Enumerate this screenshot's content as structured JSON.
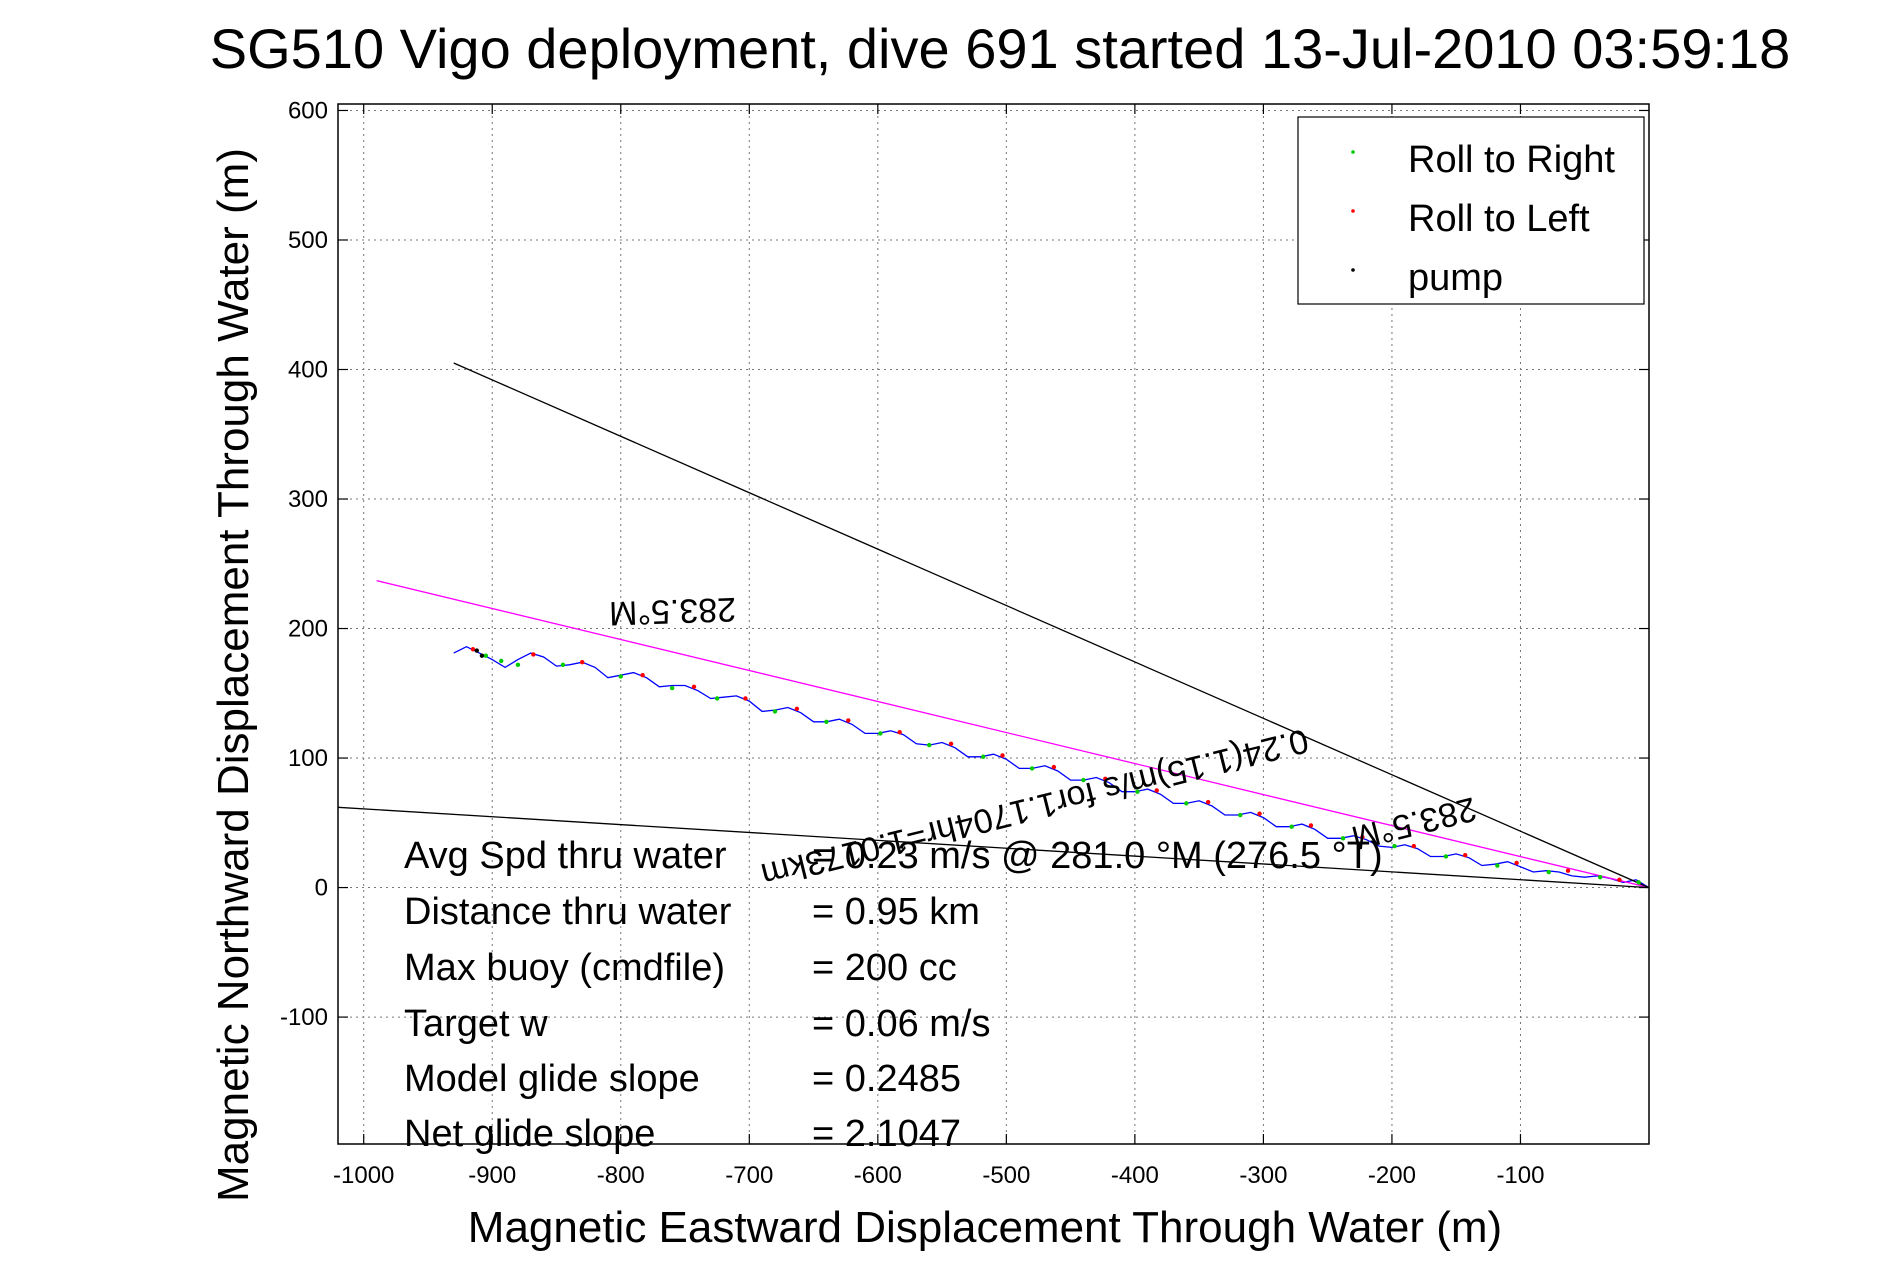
{
  "chart_data": {
    "type": "line",
    "title": "SG510 Vigo deployment, dive 691 started 13-Jul-2010 03:59:18",
    "xlabel": "Magnetic Eastward Displacement Through Water (m)",
    "ylabel": "Magnetic Northward Displacement Through Water (m)",
    "xlim": [
      -1020,
      0
    ],
    "ylim": [
      -198,
      605
    ],
    "xticks": [
      -1000,
      -900,
      -800,
      -700,
      -600,
      -500,
      -400,
      -300,
      -200,
      -100
    ],
    "yticks": [
      -100,
      0,
      100,
      200,
      300,
      400,
      500,
      600
    ],
    "grid": true,
    "legend_position": "top-right",
    "legend": [
      {
        "label": "Roll to Right",
        "color": "#00cc00"
      },
      {
        "label": "Roll to Left",
        "color": "#ff0000"
      },
      {
        "label": "pump",
        "color": "#000000"
      }
    ],
    "series": [
      {
        "color": "#0000ff",
        "x": [
          -930,
          -920,
          -910,
          -900,
          -890,
          -880,
          -870,
          -860,
          -850,
          -840,
          -830,
          -820,
          -810,
          -800,
          -790,
          -780,
          -770,
          -760,
          -750,
          -740,
          -730,
          -720,
          -710,
          -700,
          -690,
          -680,
          -670,
          -660,
          -650,
          -640,
          -630,
          -620,
          -610,
          -600,
          -590,
          -580,
          -570,
          -560,
          -550,
          -540,
          -530,
          -520,
          -510,
          -500,
          -490,
          -480,
          -470,
          -460,
          -450,
          -440,
          -430,
          -420,
          -410,
          -400,
          -390,
          -380,
          -370,
          -360,
          -350,
          -340,
          -330,
          -320,
          -310,
          -300,
          -290,
          -280,
          -270,
          -260,
          -250,
          -240,
          -230,
          -220,
          -210,
          -200,
          -190,
          -180,
          -170,
          -160,
          -150,
          -140,
          -130,
          -120,
          -110,
          -100,
          -90,
          -80,
          -70,
          -60,
          -50,
          -40,
          -30,
          -20,
          -10,
          0
        ],
        "y": [
          181,
          186,
          181,
          176,
          170,
          176,
          181,
          178,
          171,
          172,
          174,
          170,
          162,
          164,
          166,
          162,
          155,
          156,
          156,
          152,
          146,
          147,
          148,
          144,
          136,
          137,
          139,
          135,
          128,
          128,
          130,
          126,
          119,
          119,
          121,
          118,
          111,
          110,
          112,
          108,
          101,
          101,
          103,
          99,
          92,
          92,
          94,
          90,
          83,
          83,
          85,
          81,
          74,
          74,
          76,
          72,
          65,
          65,
          67,
          63,
          56,
          56,
          58,
          54,
          47,
          47,
          49,
          45,
          38,
          38,
          40,
          37,
          32,
          31,
          33,
          30,
          24,
          24,
          26,
          23,
          17,
          18,
          20,
          16,
          12,
          13,
          12,
          9,
          8,
          9,
          7,
          4,
          6,
          0
        ]
      },
      {
        "color": "#ff00ff",
        "x": [
          -990,
          0
        ],
        "y": [
          237,
          0
        ]
      },
      {
        "color": "#000000",
        "x": [
          -930,
          0
        ],
        "y": [
          405,
          0
        ]
      },
      {
        "color": "#000000",
        "x": [
          -1020,
          0
        ],
        "y": [
          62,
          0
        ]
      }
    ],
    "points": {
      "roll_right_x": [
        -905,
        -893,
        -880,
        -845,
        -800,
        -760,
        -725,
        -680,
        -640,
        -598,
        -560,
        -518,
        -480,
        -440,
        -398,
        -360,
        -318,
        -278,
        -238,
        -198,
        -158,
        -118,
        -78,
        -38,
        -8
      ],
      "roll_right_y": [
        179,
        175,
        172,
        172,
        163,
        154,
        146,
        136,
        128,
        119,
        110,
        101,
        92,
        83,
        74,
        65,
        56,
        47,
        38,
        32,
        24,
        17,
        12,
        8,
        4
      ],
      "roll_left_x": [
        -915,
        -868,
        -830,
        -783,
        -743,
        -703,
        -663,
        -623,
        -583,
        -543,
        -503,
        -463,
        -423,
        -383,
        -343,
        -303,
        -263,
        -223,
        -183,
        -143,
        -103,
        -63,
        -23
      ],
      "roll_left_y": [
        184,
        180,
        174,
        164,
        155,
        146,
        138,
        129,
        120,
        111,
        102,
        93,
        84,
        75,
        66,
        57,
        48,
        39,
        32,
        25,
        19,
        13,
        6
      ],
      "pump_x": [
        -912,
        -908
      ],
      "pump_y": [
        183,
        179
      ]
    },
    "annotations": [
      {
        "text": "283.5°M",
        "x": -760,
        "y": 222,
        "rotation": 178
      },
      {
        "text": "0.24(1.15)m/s for1.1704hr=1.0173km",
        "x": -480,
        "y": 70,
        "rotation": 166
      },
      {
        "text": "283.5°M",
        "x": -185,
        "y": 58,
        "rotation": 166
      }
    ],
    "stats": [
      {
        "label": "Avg Spd thru water",
        "value": "=  0.23 m/s @ 281.0 °M (276.5 °T)"
      },
      {
        "label": "Distance thru water",
        "value": "=  0.95 km"
      },
      {
        "label": "Max buoy (cmdfile)",
        "value": "= 200 cc"
      },
      {
        "label": "Target w",
        "value": "= 0.06 m/s"
      },
      {
        "label": "Model glide slope",
        "value": "= 0.2485"
      },
      {
        "label": "Net glide slope",
        "value": "= 2.1047"
      }
    ]
  }
}
